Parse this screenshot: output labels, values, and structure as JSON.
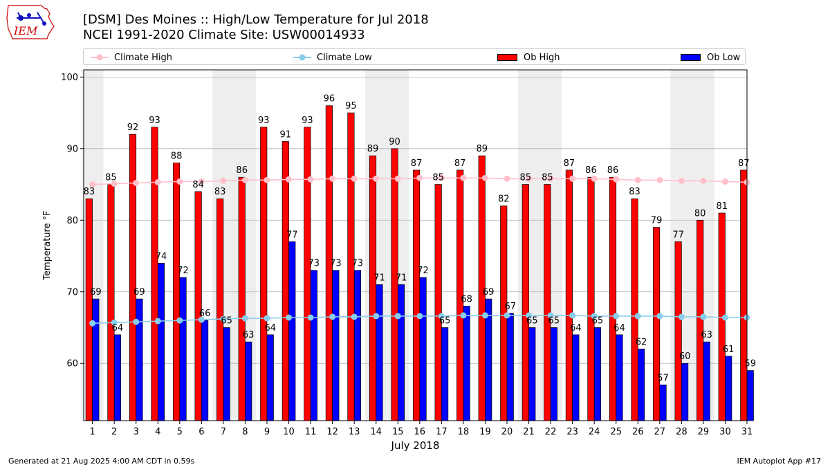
{
  "header": {
    "logo_text": "IEM",
    "title_line1": "[DSM] Des Moines :: High/Low Temperature for Jul 2018",
    "title_line2": "NCEI 1991-2020 Climate Site: USW00014933"
  },
  "footer": {
    "generated": "Generated at 21 Aug 2025 4:00 AM CDT in 0.59s",
    "app": "IEM Autoplot App #17"
  },
  "colors": {
    "ob_high": "#ff0000",
    "ob_low": "#0000ff",
    "climate_high": "#ffc0cb",
    "climate_low": "#87ceeb",
    "weekend_shade": "#eeeeee",
    "grid": "#b0b0b0"
  },
  "chart_data": {
    "type": "bar",
    "title": "[DSM] Des Moines :: High/Low Temperature for Jul 2018",
    "subtitle": "NCEI 1991-2020 Climate Site: USW00014933",
    "xlabel": "July 2018",
    "ylabel": "Temperature °F",
    "ylim": [
      52,
      101
    ],
    "yticks": [
      60,
      70,
      80,
      90,
      100
    ],
    "grid": true,
    "legend_position": "top",
    "categories": [
      "1",
      "2",
      "3",
      "4",
      "5",
      "6",
      "7",
      "8",
      "9",
      "10",
      "11",
      "12",
      "13",
      "14",
      "15",
      "16",
      "17",
      "18",
      "19",
      "20",
      "21",
      "22",
      "23",
      "24",
      "25",
      "26",
      "27",
      "28",
      "29",
      "30",
      "31"
    ],
    "shaded_days": [
      1,
      7,
      8,
      14,
      15,
      21,
      22,
      28,
      29
    ],
    "series": [
      {
        "name": "Ob High",
        "kind": "bar",
        "values": [
          83,
          85,
          92,
          93,
          88,
          84,
          83,
          86,
          93,
          91,
          93,
          96,
          95,
          89,
          90,
          87,
          85,
          87,
          89,
          82,
          85,
          85,
          87,
          86,
          86,
          83,
          79,
          77,
          80,
          81,
          87
        ]
      },
      {
        "name": "Ob Low",
        "kind": "bar",
        "values": [
          69,
          64,
          69,
          74,
          72,
          66,
          65,
          63,
          64,
          77,
          73,
          73,
          73,
          71,
          71,
          72,
          65,
          68,
          69,
          67,
          65,
          65,
          64,
          65,
          64,
          62,
          57,
          60,
          63,
          61,
          59
        ]
      },
      {
        "name": "Climate High",
        "kind": "line",
        "values": [
          85.0,
          85.1,
          85.2,
          85.3,
          85.4,
          85.4,
          85.5,
          85.6,
          85.6,
          85.7,
          85.7,
          85.8,
          85.8,
          85.8,
          85.8,
          85.9,
          85.9,
          85.9,
          85.9,
          85.8,
          85.8,
          85.8,
          85.8,
          85.8,
          85.7,
          85.6,
          85.6,
          85.5,
          85.5,
          85.4,
          85.3
        ]
      },
      {
        "name": "Climate Low",
        "kind": "line",
        "values": [
          65.6,
          65.7,
          65.8,
          65.9,
          66.0,
          66.1,
          66.2,
          66.3,
          66.3,
          66.4,
          66.4,
          66.5,
          66.5,
          66.6,
          66.6,
          66.6,
          66.6,
          66.7,
          66.7,
          66.7,
          66.7,
          66.7,
          66.7,
          66.6,
          66.6,
          66.6,
          66.6,
          66.5,
          66.5,
          66.4,
          66.4
        ]
      }
    ]
  }
}
